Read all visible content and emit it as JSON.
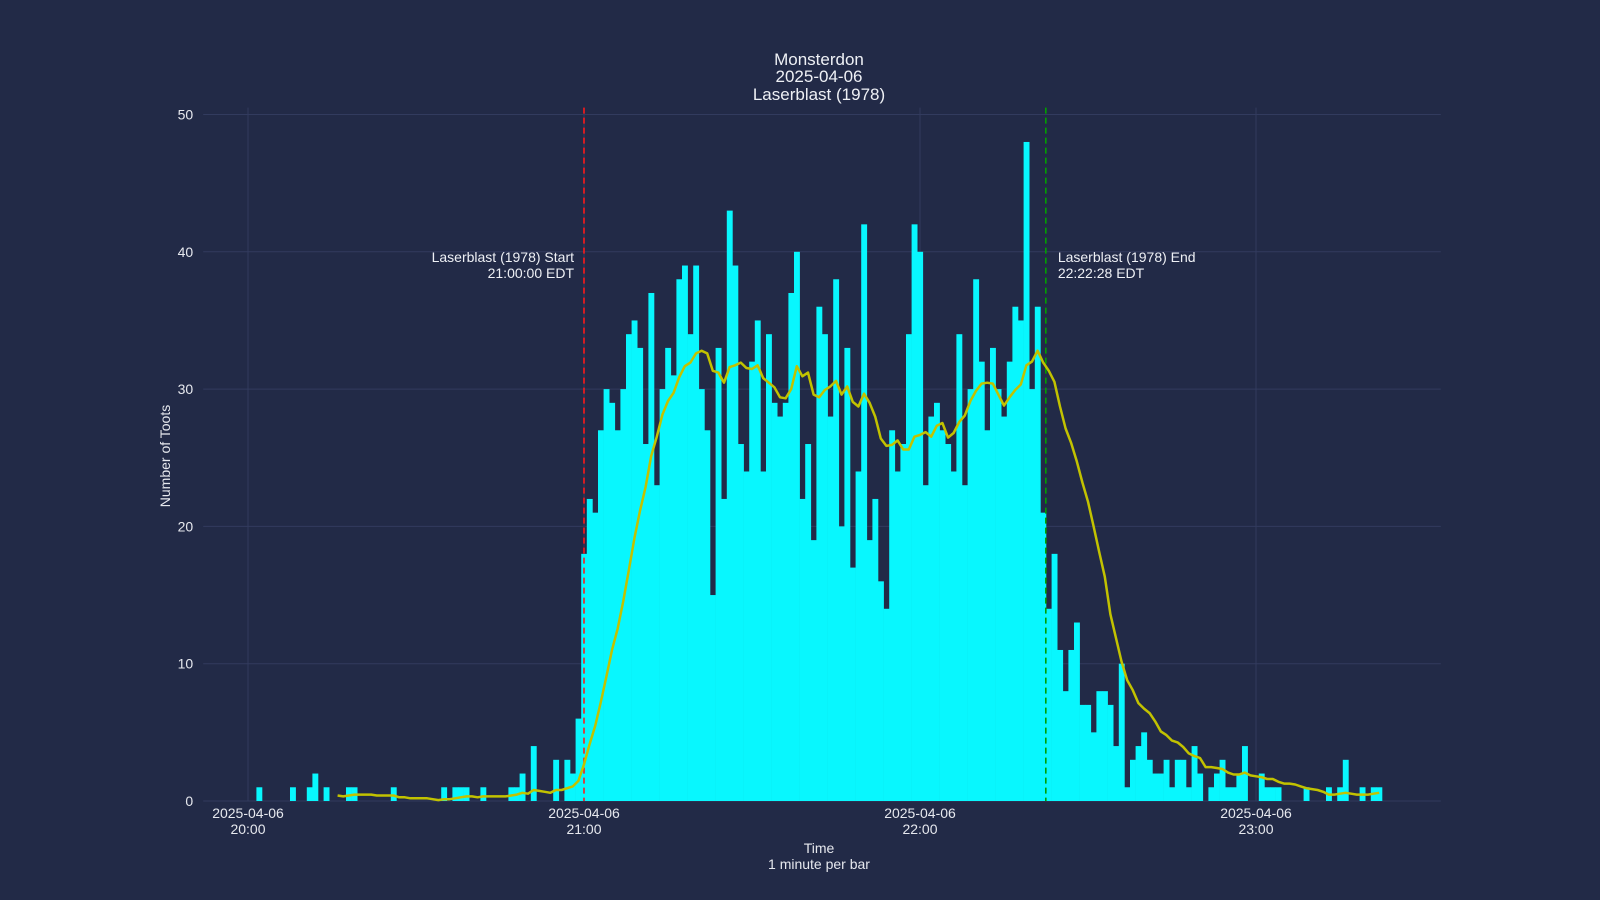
{
  "chart_data": {
    "type": "bar",
    "title_lines": [
      "Monsterdon",
      "2025-04-06",
      "Laserblast (1978)"
    ],
    "xlabel_lines": [
      "Time",
      "1 minute per bar"
    ],
    "ylabel": "Number of Toots",
    "date": "2025-04-06",
    "xlim": [
      "19:52",
      "23:33"
    ],
    "ylim": [
      0,
      50.5
    ],
    "y_ticks": [
      0,
      10,
      20,
      30,
      40,
      50
    ],
    "x_ticks": [
      {
        "time": "20:00",
        "label_date": "2025-04-06",
        "label_time": "20:00"
      },
      {
        "time": "21:00",
        "label_date": "2025-04-06",
        "label_time": "21:00"
      },
      {
        "time": "22:00",
        "label_date": "2025-04-06",
        "label_time": "22:00"
      },
      {
        "time": "23:00",
        "label_date": "2025-04-06",
        "label_time": "23:00"
      }
    ],
    "grid": true,
    "x": [
      "20:02",
      "20:03",
      "20:04",
      "20:05",
      "20:06",
      "20:07",
      "20:08",
      "20:09",
      "20:10",
      "20:11",
      "20:12",
      "20:13",
      "20:14",
      "20:15",
      "20:16",
      "20:17",
      "20:18",
      "20:19",
      "20:20",
      "20:21",
      "20:22",
      "20:23",
      "20:24",
      "20:25",
      "20:26",
      "20:27",
      "20:28",
      "20:29",
      "20:30",
      "20:31",
      "20:32",
      "20:33",
      "20:34",
      "20:35",
      "20:36",
      "20:37",
      "20:38",
      "20:39",
      "20:40",
      "20:41",
      "20:42",
      "20:43",
      "20:44",
      "20:45",
      "20:46",
      "20:47",
      "20:48",
      "20:49",
      "20:50",
      "20:51",
      "20:52",
      "20:53",
      "20:54",
      "20:55",
      "20:56",
      "20:57",
      "20:58",
      "20:59",
      "21:00",
      "21:01",
      "21:02",
      "21:03",
      "21:04",
      "21:05",
      "21:06",
      "21:07",
      "21:08",
      "21:09",
      "21:10",
      "21:11",
      "21:12",
      "21:13",
      "21:14",
      "21:15",
      "21:16",
      "21:17",
      "21:18",
      "21:19",
      "21:20",
      "21:21",
      "21:22",
      "21:23",
      "21:24",
      "21:25",
      "21:26",
      "21:27",
      "21:28",
      "21:29",
      "21:30",
      "21:31",
      "21:32",
      "21:33",
      "21:34",
      "21:35",
      "21:36",
      "21:37",
      "21:38",
      "21:39",
      "21:40",
      "21:41",
      "21:42",
      "21:43",
      "21:44",
      "21:45",
      "21:46",
      "21:47",
      "21:48",
      "21:49",
      "21:50",
      "21:51",
      "21:52",
      "21:53",
      "21:54",
      "21:55",
      "21:56",
      "21:57",
      "21:58",
      "21:59",
      "22:00",
      "22:01",
      "22:02",
      "22:03",
      "22:04",
      "22:05",
      "22:06",
      "22:07",
      "22:08",
      "22:09",
      "22:10",
      "22:11",
      "22:12",
      "22:13",
      "22:14",
      "22:15",
      "22:16",
      "22:17",
      "22:18",
      "22:19",
      "22:20",
      "22:21",
      "22:22",
      "22:23",
      "22:24",
      "22:25",
      "22:26",
      "22:27",
      "22:28",
      "22:29",
      "22:30",
      "22:31",
      "22:32",
      "22:33",
      "22:34",
      "22:35",
      "22:36",
      "22:37",
      "22:38",
      "22:39",
      "22:40",
      "22:41",
      "22:42",
      "22:43",
      "22:44",
      "22:45",
      "22:46",
      "22:47",
      "22:48",
      "22:49",
      "22:50",
      "22:51",
      "22:52",
      "22:53",
      "22:54",
      "22:55",
      "22:56",
      "22:57",
      "22:58",
      "22:59",
      "23:00",
      "23:01",
      "23:02",
      "23:03",
      "23:04",
      "23:05",
      "23:06",
      "23:07",
      "23:08",
      "23:09",
      "23:10",
      "23:11",
      "23:12",
      "23:13",
      "23:14",
      "23:15",
      "23:16",
      "23:17",
      "23:18",
      "23:19",
      "23:20",
      "23:21",
      "23:22"
    ],
    "values": [
      1,
      0,
      0,
      0,
      0,
      0,
      1,
      0,
      0,
      1,
      2,
      0,
      1,
      0,
      0,
      0,
      1,
      1,
      0,
      0,
      0,
      0,
      0,
      0,
      1,
      0,
      0,
      0,
      0,
      0,
      0,
      0,
      0,
      1,
      0,
      1,
      1,
      1,
      0,
      0,
      1,
      0,
      0,
      0,
      0,
      1,
      1,
      2,
      0,
      4,
      0,
      0,
      0,
      3,
      0,
      3,
      2,
      6,
      18,
      22,
      21,
      27,
      30,
      29,
      27,
      30,
      34,
      35,
      33,
      26,
      37,
      23,
      30,
      33,
      31,
      38,
      39,
      34,
      39,
      30,
      27,
      15,
      33,
      22,
      43,
      39,
      26,
      24,
      32,
      35,
      24,
      34,
      29,
      28,
      29,
      37,
      40,
      22,
      26,
      19,
      36,
      34,
      28,
      38,
      20,
      33,
      17,
      24,
      42,
      19,
      22,
      16,
      14,
      27,
      24,
      26,
      34,
      42,
      40,
      23,
      28,
      29,
      27,
      26,
      24,
      34,
      23,
      30,
      38,
      32,
      27,
      33,
      30,
      28,
      32,
      36,
      35,
      48,
      30,
      36,
      21,
      14,
      18,
      11,
      8,
      11,
      13,
      7,
      7,
      5,
      8,
      8,
      7,
      4,
      10,
      1,
      3,
      4,
      5,
      3,
      2,
      2,
      3,
      1,
      3,
      3,
      1,
      4,
      2,
      0,
      1,
      2,
      3,
      1,
      1,
      2,
      4,
      0,
      0,
      2,
      1,
      1,
      1,
      0,
      0,
      0,
      0,
      1,
      0,
      0,
      0,
      1,
      0,
      1,
      3,
      0,
      0,
      1,
      0,
      1,
      1
    ],
    "moving_average_window_minutes": 15,
    "colors": {
      "background": "#222a47",
      "bars": "#08f7fe",
      "moving_average": "#c2c200",
      "start_line": "#ff1a1a",
      "end_line": "#00a000",
      "grid": "#323b5e",
      "text": "#eef0f5"
    },
    "annotations": [
      {
        "time": "21:00:00",
        "label": "Laserblast (1978) Start",
        "time_label": "21:00:00 EDT",
        "line_style": "dashed",
        "color": "#ff1a1a",
        "text_side": "left"
      },
      {
        "time": "22:22:28",
        "label": "Laserblast (1978) End",
        "time_label": "22:22:28 EDT",
        "line_style": "dashed",
        "color": "#00a000",
        "text_side": "right"
      }
    ]
  }
}
